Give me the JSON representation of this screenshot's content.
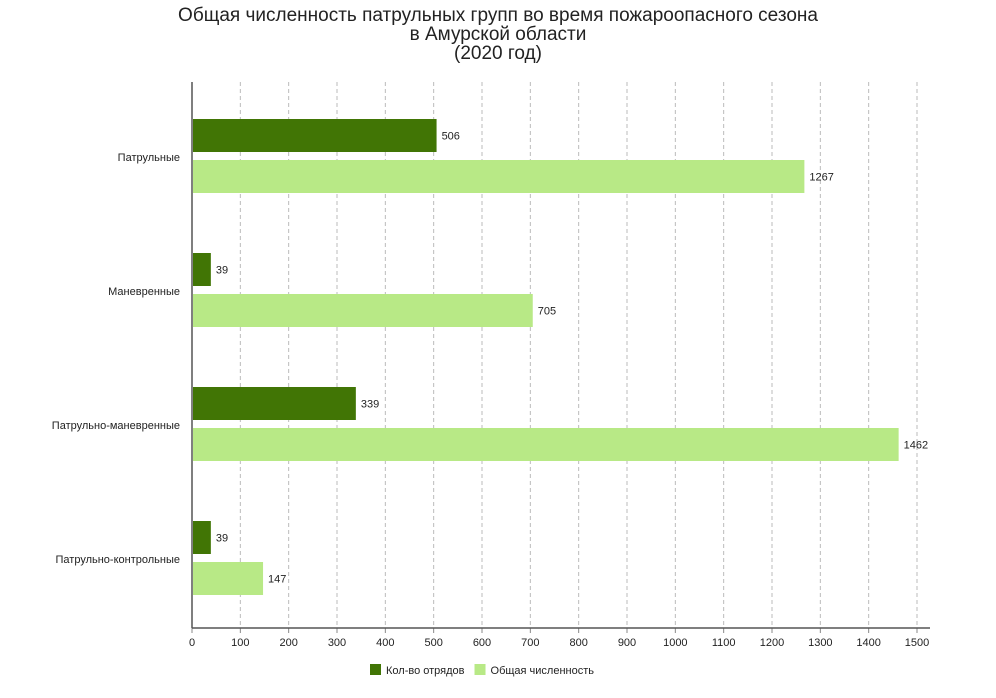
{
  "chart_data": {
    "type": "bar",
    "orientation": "horizontal",
    "title": [
      "Общая численность патрульных групп во время пожароопасного сезона",
      "в Амурской области",
      "(2020 год)"
    ],
    "categories": [
      "Патрульные",
      "Маневренные",
      "Патрульно-маневренные",
      "Патрульно-контрольные"
    ],
    "series": [
      {
        "name": "Кол-во отрядов",
        "color": "#417505",
        "values": [
          506,
          39,
          339,
          39
        ]
      },
      {
        "name": "Общая численность",
        "color": "#b8e986",
        "values": [
          1267,
          705,
          1462,
          147
        ]
      }
    ],
    "xlim": [
      0,
      1500
    ],
    "xticks": [
      0,
      100,
      200,
      300,
      400,
      500,
      600,
      700,
      800,
      900,
      1000,
      1100,
      1200,
      1300,
      1400,
      1500
    ],
    "grid": "vertical dashed",
    "legend": "bottom-center",
    "xlabel": "",
    "ylabel": ""
  }
}
